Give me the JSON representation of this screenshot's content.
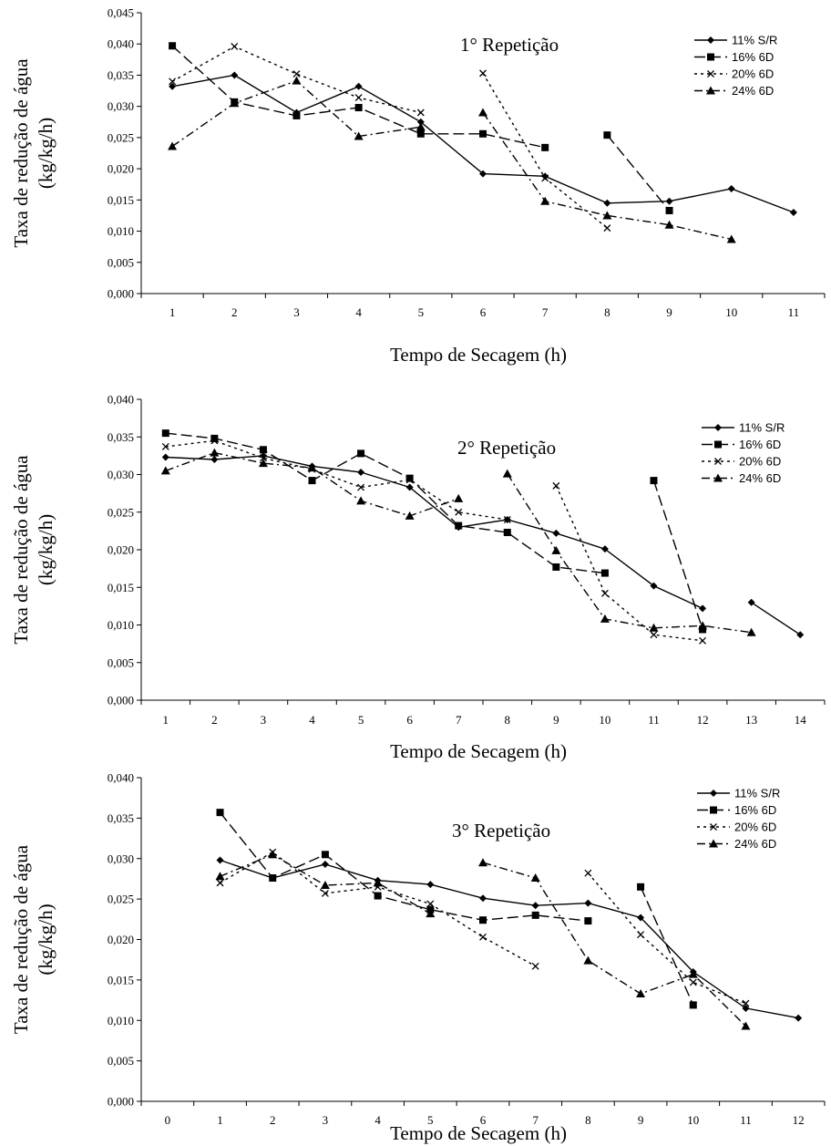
{
  "chart_data": [
    {
      "type": "line",
      "title": "1° Repetição",
      "xlabel": "Tempo de Secagem (h)",
      "ylabel": "Taxa de redução de água (kg/kg/h)",
      "ylim": [
        0,
        0.045
      ],
      "xlim": [
        0.5,
        11.5
      ],
      "x_ticks": [
        1,
        2,
        3,
        4,
        5,
        6,
        7,
        8,
        9,
        10,
        11
      ],
      "y_ticks": [
        "0,000",
        "0,005",
        "0,010",
        "0,015",
        "0,020",
        "0,025",
        "0,030",
        "0,035",
        "0,040",
        "0,045"
      ],
      "legend_position": "top-right",
      "grid": false,
      "series": [
        {
          "name": "11% S/R",
          "marker": "diamond",
          "dash": "solid",
          "segments": [
            [
              [
                1,
                0.0332
              ],
              [
                2,
                0.035
              ],
              [
                3,
                0.029
              ],
              [
                4,
                0.0332
              ],
              [
                5,
                0.0275
              ],
              [
                6,
                0.0192
              ],
              [
                7,
                0.0188
              ],
              [
                8,
                0.0145
              ],
              [
                9,
                0.0148
              ],
              [
                10,
                0.0168
              ],
              [
                11,
                0.013
              ]
            ]
          ]
        },
        {
          "name": "16% 6D",
          "marker": "square",
          "dash": "long",
          "segments": [
            [
              [
                1,
                0.0397
              ],
              [
                2,
                0.0307
              ],
              [
                3,
                0.0285
              ],
              [
                4,
                0.0298
              ],
              [
                5,
                0.0256
              ],
              [
                6,
                0.0256
              ],
              [
                7,
                0.0234
              ]
            ],
            [
              [
                8,
                0.0254
              ],
              [
                9,
                0.0133
              ]
            ]
          ]
        },
        {
          "name": "20% 6D",
          "marker": "x",
          "dash": "short",
          "segments": [
            [
              [
                1,
                0.034
              ],
              [
                2,
                0.0396
              ],
              [
                3,
                0.0352
              ],
              [
                4,
                0.0314
              ],
              [
                5,
                0.029
              ]
            ],
            [
              [
                6,
                0.0353
              ],
              [
                7,
                0.0185
              ],
              [
                8,
                0.0105
              ]
            ]
          ]
        },
        {
          "name": "24% 6D",
          "marker": "triangle",
          "dash": "dashdot",
          "segments": [
            [
              [
                1,
                0.0236
              ],
              [
                2,
                0.0305
              ],
              [
                3,
                0.0341
              ],
              [
                4,
                0.0252
              ],
              [
                5,
                0.0267
              ]
            ],
            [
              [
                6,
                0.029
              ],
              [
                7,
                0.0148
              ],
              [
                8,
                0.0125
              ],
              [
                9,
                0.011
              ],
              [
                10,
                0.0087
              ]
            ]
          ]
        }
      ]
    },
    {
      "type": "line",
      "title": "2° Repetição",
      "xlabel": "Tempo de Secagem (h)",
      "ylabel": "Taxa de redução de água (kg/kg/h)",
      "ylim": [
        0,
        0.04
      ],
      "xlim": [
        0.5,
        14.5
      ],
      "x_ticks": [
        1,
        2,
        3,
        4,
        5,
        6,
        7,
        8,
        9,
        10,
        11,
        12,
        13,
        14
      ],
      "y_ticks": [
        "0,000",
        "0,005",
        "0,010",
        "0,015",
        "0,020",
        "0,025",
        "0,030",
        "0,035",
        "0,040"
      ],
      "legend_position": "top-right",
      "grid": false,
      "series": [
        {
          "name": "11% S/R",
          "marker": "diamond",
          "dash": "solid",
          "segments": [
            [
              [
                1,
                0.0323
              ],
              [
                2,
                0.032
              ],
              [
                3,
                0.0325
              ],
              [
                4,
                0.0311
              ],
              [
                5,
                0.0303
              ],
              [
                6,
                0.0283
              ],
              [
                7,
                0.023
              ],
              [
                8,
                0.024
              ],
              [
                9,
                0.0222
              ],
              [
                10,
                0.0201
              ],
              [
                11,
                0.0152
              ],
              [
                12,
                0.0122
              ]
            ],
            [
              [
                13,
                0.013
              ],
              [
                14,
                0.0087
              ]
            ]
          ]
        },
        {
          "name": "16% 6D",
          "marker": "square",
          "dash": "long",
          "segments": [
            [
              [
                1,
                0.0355
              ],
              [
                2,
                0.0348
              ],
              [
                3,
                0.0333
              ],
              [
                4,
                0.0292
              ],
              [
                5,
                0.0328
              ],
              [
                6,
                0.0295
              ],
              [
                7,
                0.0232
              ],
              [
                8,
                0.0223
              ],
              [
                9,
                0.0177
              ],
              [
                10,
                0.0169
              ]
            ],
            [
              [
                11,
                0.0292
              ],
              [
                12,
                0.0094
              ]
            ]
          ]
        },
        {
          "name": "20% 6D",
          "marker": "x",
          "dash": "short",
          "segments": [
            [
              [
                1,
                0.0337
              ],
              [
                2,
                0.0345
              ],
              [
                3,
                0.0322
              ],
              [
                4,
                0.0307
              ],
              [
                5,
                0.0283
              ],
              [
                6,
                0.0293
              ],
              [
                7,
                0.025
              ],
              [
                8,
                0.024
              ]
            ],
            [
              [
                9,
                0.0285
              ],
              [
                10,
                0.0142
              ],
              [
                11,
                0.0087
              ],
              [
                12,
                0.0079
              ]
            ]
          ]
        },
        {
          "name": "24% 6D",
          "marker": "triangle",
          "dash": "dashdot",
          "segments": [
            [
              [
                1,
                0.0305
              ],
              [
                2,
                0.0329
              ],
              [
                3,
                0.0315
              ],
              [
                4,
                0.0309
              ],
              [
                5,
                0.0265
              ],
              [
                6,
                0.0245
              ],
              [
                7,
                0.0268
              ]
            ],
            [
              [
                8,
                0.0301
              ],
              [
                9,
                0.0199
              ],
              [
                10,
                0.0108
              ],
              [
                11,
                0.0096
              ],
              [
                12,
                0.0099
              ],
              [
                13,
                0.009
              ]
            ]
          ]
        }
      ]
    },
    {
      "type": "line",
      "title": "3° Repetição",
      "xlabel": "Tempo de Secagem (h)",
      "ylabel": "Taxa de redução de água (kg/kg/h)",
      "ylim": [
        0,
        0.04
      ],
      "xlim": [
        -0.5,
        12.5
      ],
      "x_ticks": [
        0,
        1,
        2,
        3,
        4,
        5,
        6,
        7,
        8,
        9,
        10,
        11,
        12
      ],
      "y_ticks": [
        "0,000",
        "0,005",
        "0,010",
        "0,015",
        "0,020",
        "0,025",
        "0,030",
        "0,035",
        "0,040"
      ],
      "legend_position": "top-right",
      "grid": false,
      "series": [
        {
          "name": "11% S/R",
          "marker": "diamond",
          "dash": "solid",
          "segments": [
            [
              [
                1,
                0.0298
              ],
              [
                2,
                0.0276
              ],
              [
                3,
                0.0293
              ],
              [
                4,
                0.0273
              ],
              [
                5,
                0.0268
              ],
              [
                6,
                0.0251
              ],
              [
                7,
                0.0242
              ],
              [
                8,
                0.0245
              ],
              [
                9,
                0.0227
              ],
              [
                10,
                0.016
              ],
              [
                11,
                0.0115
              ],
              [
                12,
                0.0103
              ]
            ]
          ]
        },
        {
          "name": "16% 6D",
          "marker": "square",
          "dash": "long",
          "segments": [
            [
              [
                1,
                0.0357
              ],
              [
                2,
                0.0276
              ],
              [
                3,
                0.0305
              ],
              [
                4,
                0.0254
              ],
              [
                5,
                0.0237
              ],
              [
                6,
                0.0224
              ],
              [
                7,
                0.023
              ],
              [
                8,
                0.0223
              ]
            ],
            [
              [
                9,
                0.0265
              ],
              [
                10,
                0.0119
              ]
            ]
          ]
        },
        {
          "name": "20% 6D",
          "marker": "x",
          "dash": "short",
          "segments": [
            [
              [
                1,
                0.027
              ],
              [
                2,
                0.0308
              ],
              [
                3,
                0.0257
              ],
              [
                4,
                0.0265
              ],
              [
                5,
                0.0244
              ],
              [
                6,
                0.0203
              ],
              [
                7,
                0.0167
              ]
            ],
            [
              [
                8,
                0.0282
              ],
              [
                9,
                0.0206
              ],
              [
                10,
                0.0147
              ],
              [
                11,
                0.0121
              ]
            ]
          ]
        },
        {
          "name": "24% 6D",
          "marker": "triangle",
          "dash": "dashdot",
          "segments": [
            [
              [
                1,
                0.0278
              ],
              [
                2,
                0.0305
              ],
              [
                3,
                0.0267
              ],
              [
                4,
                0.027
              ],
              [
                5,
                0.0232
              ]
            ],
            [
              [
                6,
                0.0295
              ],
              [
                7,
                0.0276
              ],
              [
                8,
                0.0174
              ],
              [
                9,
                0.0133
              ],
              [
                10,
                0.0157
              ],
              [
                11,
                0.0093
              ]
            ]
          ]
        }
      ]
    }
  ]
}
